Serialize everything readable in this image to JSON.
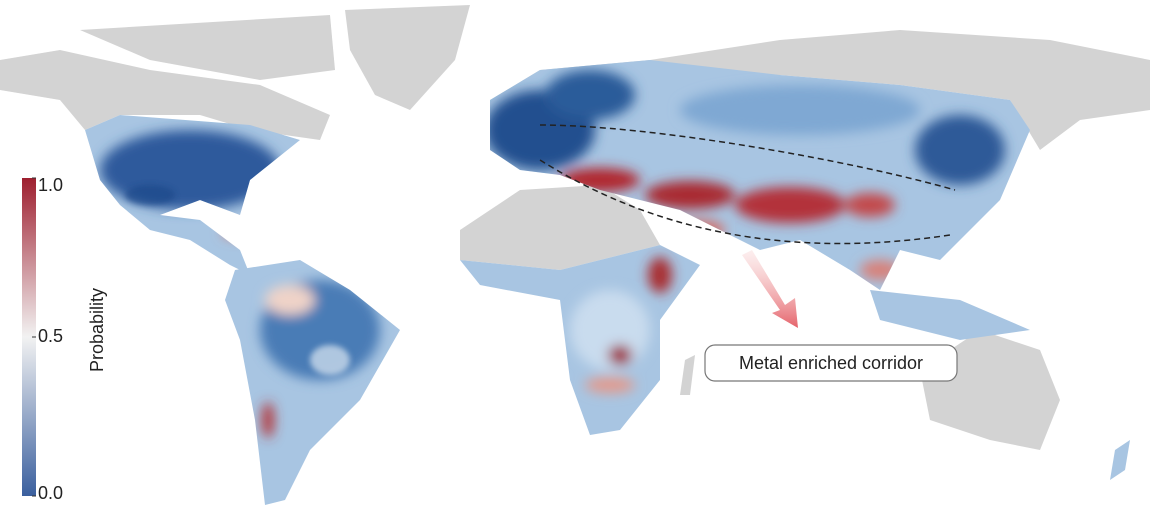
{
  "colorbar": {
    "label": "Probability",
    "range": [
      0,
      1
    ],
    "colors": [
      "#3a5f9e",
      "#f2f2f2",
      "#9e1f2f"
    ],
    "ticks": [
      {
        "value": 0,
        "label": "0.0"
      },
      {
        "value": 0.5,
        "label": "0.5"
      },
      {
        "value": 1,
        "label": "1.0"
      }
    ]
  },
  "annotation": {
    "text": "Metal enriched corridor"
  }
}
